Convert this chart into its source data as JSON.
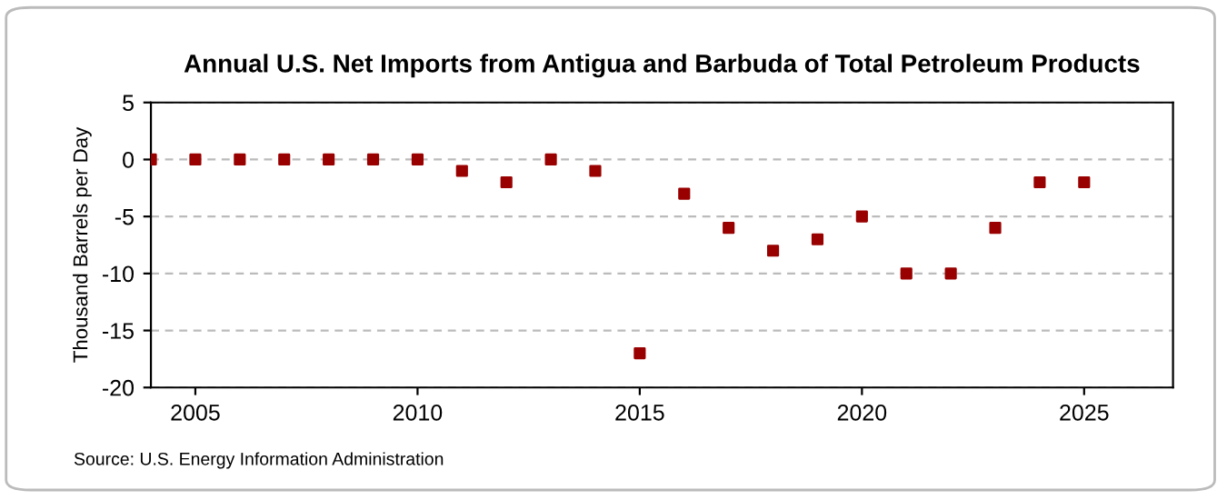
{
  "chart_data": {
    "type": "scatter",
    "title": "Annual U.S. Net Imports from Antigua and Barbuda of Total Petroleum Products",
    "ylabel": "Thousand Barrels per Day",
    "x": [
      2004,
      2005,
      2006,
      2007,
      2008,
      2009,
      2010,
      2011,
      2012,
      2013,
      2014,
      2015,
      2016,
      2017,
      2018,
      2019,
      2020,
      2021,
      2022,
      2023,
      2024,
      2025
    ],
    "series": [
      {
        "color": "#990000",
        "values": [
          0,
          0,
          0,
          0,
          0,
          0,
          0,
          -1,
          -2,
          0,
          -1,
          -17,
          -3,
          -6,
          -8,
          -7,
          -5,
          -10,
          -10,
          -6,
          -2,
          -2
        ]
      }
    ],
    "marker": "square",
    "xlim": [
      2004,
      2027
    ],
    "xticks": [
      2005,
      2010,
      2015,
      2020,
      2025
    ],
    "ylim": [
      -20,
      5
    ],
    "yticks": [
      -20,
      -15,
      -10,
      -5,
      0,
      5
    ],
    "grid": "y",
    "annotations": [
      "Source: U.S. Energy Information Administration"
    ]
  }
}
